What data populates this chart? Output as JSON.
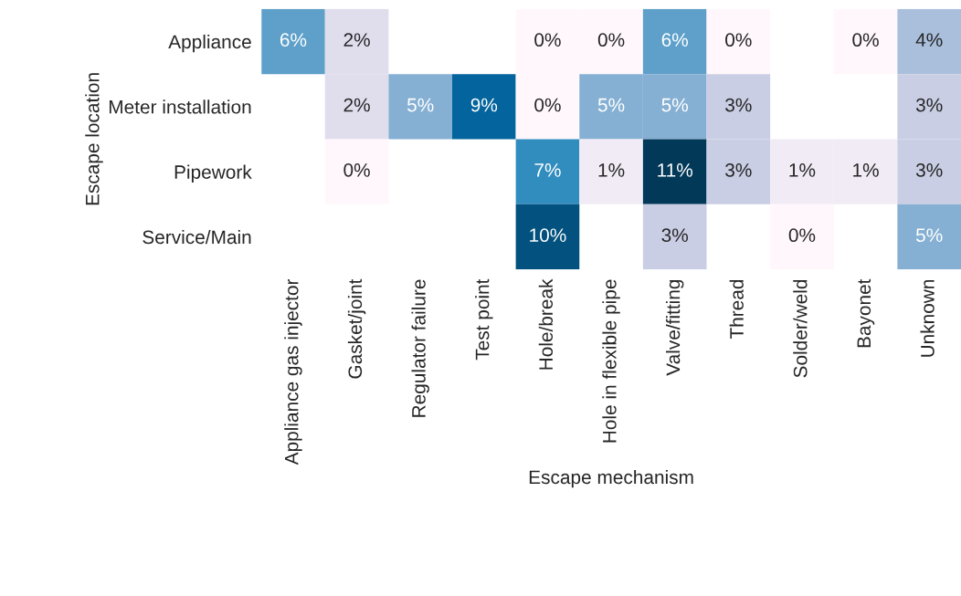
{
  "chart_data": {
    "type": "heatmap",
    "xlabel": "Escape mechanism",
    "ylabel": "Escape location",
    "categories": [
      "Appliance gas injector",
      "Gasket/joint",
      "Regulator failure",
      "Test point",
      "Hole/break",
      "Hole in flexible pipe",
      "Valve/fitting",
      "Thread",
      "Solder/weld",
      "Bayonet",
      "Unknown"
    ],
    "y_categories": [
      "Appliance",
      "Meter installation",
      "Pipework",
      "Service/Main"
    ],
    "cells": [
      [
        6,
        2,
        null,
        null,
        0,
        0,
        6,
        0,
        null,
        0,
        4
      ],
      [
        null,
        2,
        5,
        9,
        0,
        5,
        5,
        3,
        null,
        null,
        3
      ],
      [
        null,
        0,
        null,
        null,
        7,
        1,
        11,
        3,
        1,
        1,
        3
      ],
      [
        null,
        null,
        null,
        null,
        10,
        null,
        3,
        null,
        0,
        null,
        5
      ]
    ],
    "cell_labels": [
      [
        "6%",
        "2%",
        null,
        null,
        "0%",
        "0%",
        "6%",
        "0%",
        null,
        "0%",
        "4%"
      ],
      [
        null,
        "2%",
        "5%",
        "9%",
        "0%",
        "5%",
        "5%",
        "3%",
        null,
        null,
        "3%"
      ],
      [
        null,
        "0%",
        null,
        null,
        "7%",
        "1%",
        "11%",
        "3%",
        "1%",
        "1%",
        "3%"
      ],
      [
        null,
        null,
        null,
        null,
        "10%",
        null,
        "3%",
        null,
        "0%",
        null,
        "5%"
      ]
    ],
    "legend": false
  }
}
